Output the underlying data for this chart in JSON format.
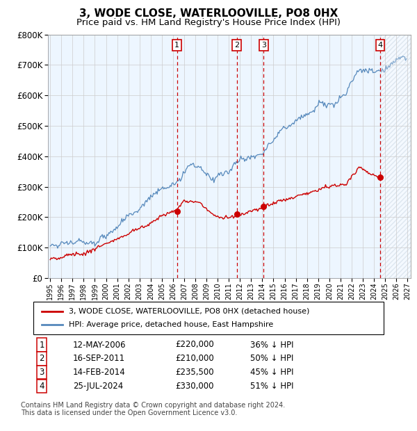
{
  "title": "3, WODE CLOSE, WATERLOOVILLE, PO8 0HX",
  "subtitle": "Price paid vs. HM Land Registry's House Price Index (HPI)",
  "title_fontsize": 11,
  "subtitle_fontsize": 9.5,
  "ylim": [
    0,
    800000
  ],
  "yticks": [
    0,
    100000,
    200000,
    300000,
    400000,
    500000,
    600000,
    700000,
    800000
  ],
  "ytick_labels": [
    "£0",
    "£100K",
    "£200K",
    "£300K",
    "£400K",
    "£500K",
    "£600K",
    "£700K",
    "£800K"
  ],
  "xlim_start": 1994.8,
  "xlim_end": 2027.3,
  "hpi_color": "#5588bb",
  "hpi_fill_color": "#ddeeff",
  "price_color": "#cc0000",
  "transaction_color": "#cc0000",
  "transactions": [
    {
      "num": 1,
      "date": "12-MAY-2006",
      "price": 220000,
      "pct": "36%",
      "x": 2006.36
    },
    {
      "num": 2,
      "date": "16-SEP-2011",
      "price": 210000,
      "pct": "50%",
      "x": 2011.71
    },
    {
      "num": 3,
      "date": "14-FEB-2014",
      "price": 235500,
      "pct": "45%",
      "x": 2014.12
    },
    {
      "num": 4,
      "date": "25-JUL-2024",
      "price": 330000,
      "pct": "51%",
      "x": 2024.57
    }
  ],
  "legend_property": "3, WODE CLOSE, WATERLOOVILLE, PO8 0HX (detached house)",
  "legend_hpi": "HPI: Average price, detached house, East Hampshire",
  "footnote": "Contains HM Land Registry data © Crown copyright and database right 2024.\nThis data is licensed under the Open Government Licence v3.0.",
  "table_rows": [
    [
      "1",
      "12-MAY-2006",
      "£220,000",
      "36% ↓ HPI"
    ],
    [
      "2",
      "16-SEP-2011",
      "£210,000",
      "50% ↓ HPI"
    ],
    [
      "3",
      "14-FEB-2014",
      "£235,500",
      "45% ↓ HPI"
    ],
    [
      "4",
      "25-JUL-2024",
      "£330,000",
      "51% ↓ HPI"
    ]
  ],
  "hatch_start": 2024.57,
  "background_color": "#ffffff",
  "grid_color": "#cccccc"
}
